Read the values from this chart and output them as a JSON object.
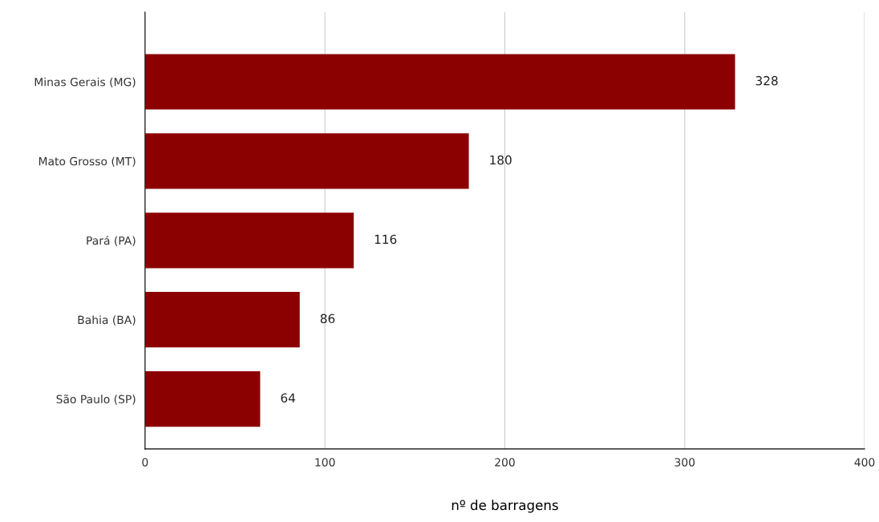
{
  "chart_data": {
    "type": "bar",
    "orientation": "horizontal",
    "xlabel": "nº de barragens",
    "categories": [
      "Minas Gerais (MG)",
      "Mato Grosso (MT)",
      "Pará (PA)",
      "Bahia (BA)",
      "São Paulo (SP)"
    ],
    "values": [
      328,
      180,
      116,
      86,
      64
    ],
    "color": "#8b0000",
    "xlim": [
      0,
      400
    ],
    "xticks": [
      0,
      100,
      200,
      300,
      400
    ],
    "grid": "x",
    "data_labels": true
  }
}
